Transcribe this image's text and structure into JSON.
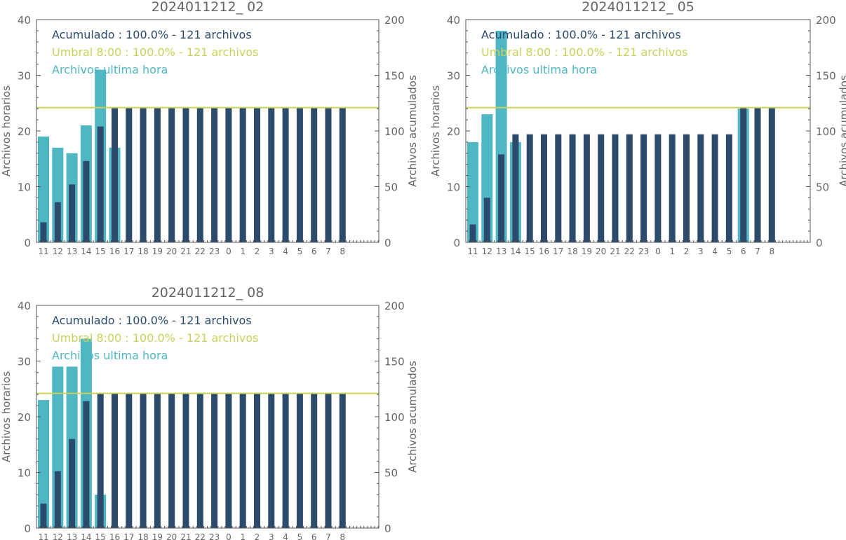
{
  "colors": {
    "hourly": "#4fb6c4",
    "cumulative": "#2c4a6b",
    "threshold": "#c8d25a",
    "axis": "#555555",
    "text": "#666666"
  },
  "chart_data": [
    {
      "type": "bar",
      "title": "2024011212_ 02",
      "ylabel_left": "Archivos horarios",
      "ylabel_right": "Archivos acumulados",
      "ylim_left": [
        0,
        40
      ],
      "ylim_right": [
        0,
        200
      ],
      "legend": [
        "Acumulado : 100.0% - 121 archivos",
        "Umbral 8:00 : 100.0% - 121 archivos",
        "Archivos ultima hora"
      ],
      "categories": [
        "11",
        "12",
        "13",
        "14",
        "15",
        "16",
        "17",
        "18",
        "19",
        "20",
        "21",
        "22",
        "23",
        "0",
        "1",
        "2",
        "3",
        "4",
        "5",
        "6",
        "7",
        "8"
      ],
      "series": [
        {
          "name": "Archivos ultima hora",
          "axis": "left",
          "values": [
            19,
            17,
            16,
            21,
            31,
            17,
            null,
            null,
            null,
            null,
            null,
            null,
            null,
            null,
            null,
            null,
            null,
            null,
            null,
            null,
            null,
            null
          ]
        },
        {
          "name": "Acumulado",
          "axis": "right",
          "values": [
            18,
            36,
            52,
            73,
            104,
            121,
            121,
            121,
            121,
            121,
            121,
            121,
            121,
            121,
            121,
            121,
            121,
            121,
            121,
            121,
            121,
            121
          ]
        }
      ],
      "threshold": {
        "name": "Umbral 8:00",
        "axis": "right",
        "value": 121
      },
      "grid": false
    },
    {
      "type": "bar",
      "title": "2024011212_ 05",
      "ylabel_left": "Archivos horarios",
      "ylabel_right": "Archivos acumulados",
      "ylim_left": [
        0,
        40
      ],
      "ylim_right": [
        0,
        200
      ],
      "legend": [
        "Acumulado : 100.0% - 121 archivos",
        "Umbral 8:00 : 100.0% - 121 archivos",
        "Archivos ultima hora"
      ],
      "categories": [
        "11",
        "12",
        "13",
        "14",
        "15",
        "16",
        "17",
        "18",
        "19",
        "20",
        "21",
        "22",
        "23",
        "0",
        "1",
        "2",
        "3",
        "4",
        "5",
        "6",
        "7",
        "8"
      ],
      "series": [
        {
          "name": "Archivos ultima hora",
          "axis": "left",
          "values": [
            18,
            23,
            38,
            18,
            null,
            null,
            null,
            null,
            null,
            null,
            null,
            null,
            null,
            null,
            null,
            null,
            null,
            null,
            null,
            24,
            null,
            null
          ]
        },
        {
          "name": "Acumulado",
          "axis": "right",
          "values": [
            16,
            40,
            79,
            97,
            97,
            97,
            97,
            97,
            97,
            97,
            97,
            97,
            97,
            97,
            97,
            97,
            97,
            97,
            97,
            121,
            121,
            121
          ]
        }
      ],
      "threshold": {
        "name": "Umbral 8:00",
        "axis": "right",
        "value": 121
      },
      "grid": false
    },
    {
      "type": "bar",
      "title": "2024011212_ 08",
      "ylabel_left": "Archivos horarios",
      "ylabel_right": "Archivos acumulados",
      "ylim_left": [
        0,
        40
      ],
      "ylim_right": [
        0,
        200
      ],
      "legend": [
        "Acumulado : 100.0% - 121 archivos",
        "Umbral 8:00 : 100.0% - 121 archivos",
        "Archivos ultima hora"
      ],
      "categories": [
        "11",
        "12",
        "13",
        "14",
        "15",
        "16",
        "17",
        "18",
        "19",
        "20",
        "21",
        "22",
        "23",
        "0",
        "1",
        "2",
        "3",
        "4",
        "5",
        "6",
        "7",
        "8"
      ],
      "series": [
        {
          "name": "Archivos ultima hora",
          "axis": "left",
          "values": [
            23,
            29,
            29,
            34,
            6,
            null,
            null,
            null,
            null,
            null,
            null,
            null,
            null,
            null,
            null,
            null,
            null,
            null,
            null,
            null,
            null,
            null
          ]
        },
        {
          "name": "Acumulado",
          "axis": "right",
          "values": [
            22,
            51,
            80,
            114,
            121,
            121,
            121,
            121,
            121,
            121,
            121,
            121,
            121,
            121,
            121,
            121,
            121,
            121,
            121,
            121,
            121,
            121
          ]
        }
      ],
      "threshold": {
        "name": "Umbral 8:00",
        "axis": "right",
        "value": 121
      },
      "grid": false
    }
  ]
}
